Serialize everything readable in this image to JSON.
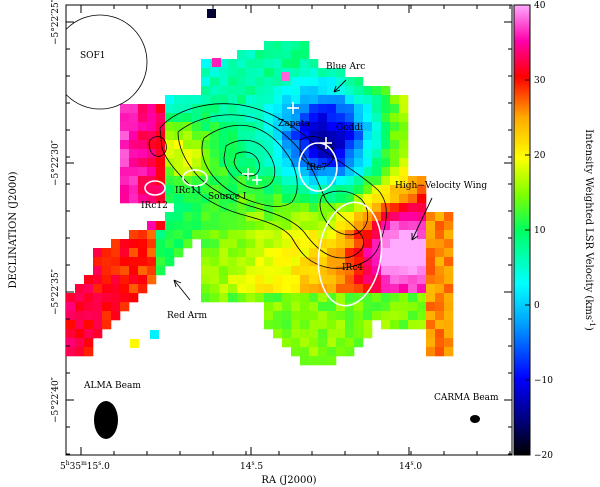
{
  "chart_data": {
    "type": "heatmap",
    "xlabel": "RA (J2000)",
    "ylabel": "DECLINATION (J2000)",
    "colorbar_label": "Intensity Weighted LSR Velocity (kms",
    "colorbar_label_sup": "-1",
    "colorbar_label_close": ")",
    "colorbar_range": [
      -20,
      40
    ],
    "colorbar_ticks": [
      {
        "value": 40,
        "label": "40"
      },
      {
        "value": 30,
        "label": "30"
      },
      {
        "value": 20,
        "label": "20"
      },
      {
        "value": 10,
        "label": "10"
      },
      {
        "value": 0,
        "label": "0"
      },
      {
        "value": -10,
        "label": "−10"
      },
      {
        "value": -20,
        "label": "−20"
      }
    ],
    "x_ticks": [
      {
        "arcsec": 15.0,
        "label_main": "5",
        "sup1": "h",
        "label_mid1": "35",
        "sup2": "m",
        "label_mid2": "15",
        "sup3": "s",
        "label_end": ".0"
      },
      {
        "arcsec": 14.5,
        "label_main": "14",
        "sup3": "s",
        "label_end": ".5"
      },
      {
        "arcsec": 14.0,
        "label_main": "14",
        "sup3": "s",
        "label_end": ".0"
      }
    ],
    "y_ticks": [
      {
        "arcsec": 25,
        "label": "−5°22′25″"
      },
      {
        "arcsec": 30,
        "label": "−5°22′30″"
      },
      {
        "arcsec": 35,
        "label": "−5°22′35″"
      },
      {
        "arcsec": 40,
        "label": "−5°22′40″"
      }
    ],
    "annotations": [
      {
        "text": "SOF1"
      },
      {
        "text": "Blue Arc"
      },
      {
        "text": "Zapata"
      },
      {
        "text": "Goddi"
      },
      {
        "text": "IRc7"
      },
      {
        "text": "IRc11"
      },
      {
        "text": "IRc12"
      },
      {
        "text": "Source I"
      },
      {
        "text": "High−Velocity Wing"
      },
      {
        "text": "IRc4"
      },
      {
        "text": "Red Arm"
      },
      {
        "text": "ALMA Beam"
      },
      {
        "text": "CARMA Beam"
      }
    ]
  }
}
